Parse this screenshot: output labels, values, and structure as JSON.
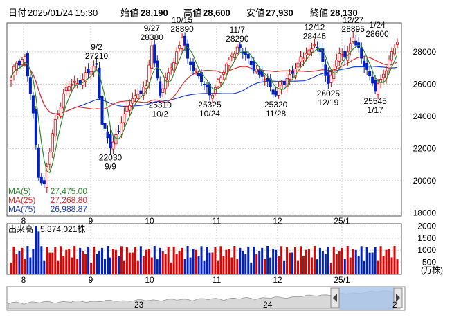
{
  "header": {
    "period_label": "日付",
    "date_time": "2025/01/24 15:30",
    "open_label": "始値",
    "open_value": "28,190",
    "high_label": "高値",
    "high_value": "28,600",
    "low_label": "安値",
    "low_value": "27,930",
    "close_label": "終値",
    "close_value": "28,130",
    "high_color": "#e00000",
    "low_color": "#00a000"
  },
  "legend": {
    "ma5_label": "MA(5)",
    "ma5_value": "27,475.00",
    "ma5_color": "#2a8a2a",
    "ma25_label": "MA(25)",
    "ma25_value": "27,268.80",
    "ma25_color": "#e03030",
    "ma75_label": "MA(75)",
    "ma75_value": "26,988.87",
    "ma75_color": "#2040d0"
  },
  "volume_panel": {
    "label": "出来高",
    "value": "5,874,021株",
    "unit": "(万株)",
    "ticks": [
      "2000",
      "1500",
      "1000",
      "500"
    ]
  },
  "navigator": {
    "labels": [
      "23",
      "24",
      "2"
    ]
  },
  "chart_data": {
    "type": "candlestick",
    "x_ticks": [
      "8",
      "9",
      "10",
      "11",
      "12",
      "25/1"
    ],
    "y_ticks": [
      18000,
      20000,
      22000,
      24000,
      26000,
      28000
    ],
    "ylim": [
      17800,
      29800
    ],
    "volume_ylim": [
      0,
      2100
    ],
    "up_color": "#e00000",
    "down_color": "#0020c0",
    "annotations": [
      {
        "date": "9/2",
        "value": "27210",
        "type": "high"
      },
      {
        "date": "9/9",
        "value": "22030",
        "type": "low"
      },
      {
        "date": "9/27",
        "value": "28380",
        "type": "high"
      },
      {
        "date": "10/2",
        "value": "25310",
        "type": "low"
      },
      {
        "date": "10/15",
        "value": "28890",
        "type": "high"
      },
      {
        "date": "10/24",
        "value": "25325",
        "type": "low"
      },
      {
        "date": "11/7",
        "value": "28290",
        "type": "high"
      },
      {
        "date": "11/28",
        "value": "25320",
        "type": "low"
      },
      {
        "date": "12/12",
        "value": "28445",
        "type": "high"
      },
      {
        "date": "12/19",
        "value": "26025",
        "type": "low"
      },
      {
        "date": "12/27",
        "value": "28895",
        "type": "high"
      },
      {
        "date": "1/17",
        "value": "25545",
        "type": "low"
      },
      {
        "date": "1/24",
        "value": "28600",
        "type": "high"
      }
    ]
  }
}
